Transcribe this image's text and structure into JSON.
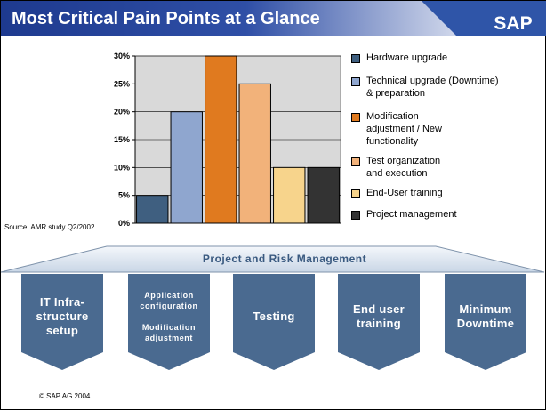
{
  "page": {
    "title": "Most Critical Pain Points at a Glance",
    "logo_text": "SAP",
    "source": "Source: AMR study Q2/2002",
    "footer": "© SAP AG 2004"
  },
  "chart_data": {
    "type": "bar",
    "categories": [
      "Hardware upgrade",
      "Technical upgrade (Downtime) & preparation",
      "Modification adjustment / New functionality",
      "Test organization and execution",
      "End-User training",
      "Project management"
    ],
    "values": [
      5,
      20,
      30,
      25,
      10,
      10
    ],
    "colors": [
      "#3f5f80",
      "#8fa6cf",
      "#e07a1f",
      "#f2b27a",
      "#f7d48c",
      "#333333"
    ],
    "ylim": [
      0,
      30
    ],
    "yticks": [
      0,
      5,
      10,
      15,
      20,
      25,
      30
    ],
    "ytick_labels": [
      "0%",
      "5%",
      "10%",
      "15%",
      "20%",
      "25%",
      "30%"
    ],
    "title": "",
    "xlabel": "",
    "ylabel": "",
    "legend_position": "right",
    "legend": [
      {
        "lines": [
          "Hardware upgrade"
        ]
      },
      {
        "lines": [
          "Technical upgrade (Downtime)",
          "& preparation"
        ]
      },
      {
        "lines": [
          "Modification",
          "adjustment / New",
          "functionality"
        ]
      },
      {
        "lines": [
          "Test organization",
          "and execution"
        ]
      },
      {
        "lines": [
          "End-User training"
        ]
      },
      {
        "lines": [
          "Project management"
        ]
      }
    ]
  },
  "process": {
    "banner": "Project and Risk Management",
    "steps": [
      {
        "lines": [
          "IT Infra-",
          "structure",
          "setup"
        ]
      },
      {
        "lines": [
          "Application",
          "configuration",
          "",
          "Modification",
          "adjustment"
        ]
      },
      {
        "lines": [
          "Testing"
        ]
      },
      {
        "lines": [
          "End user",
          "training"
        ]
      },
      {
        "lines": [
          "Minimum",
          "Downtime"
        ]
      }
    ]
  }
}
